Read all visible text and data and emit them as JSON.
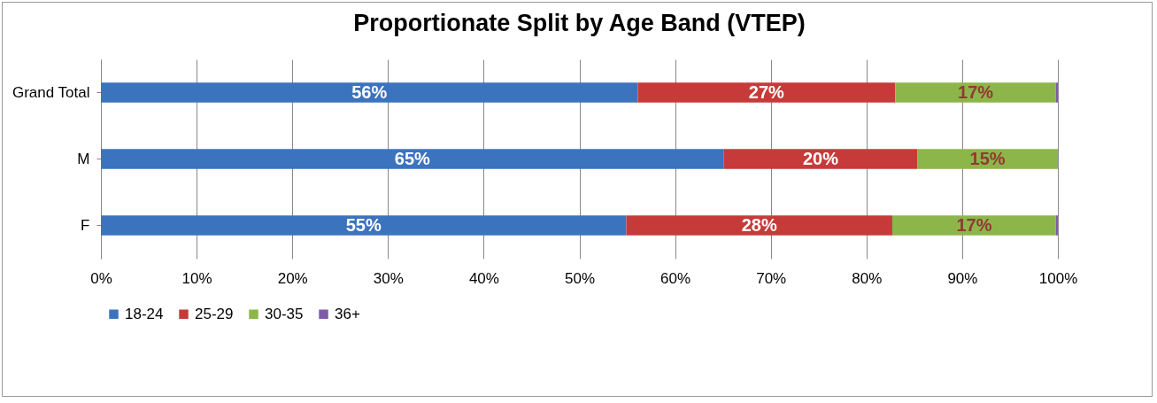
{
  "chart_data": {
    "type": "bar",
    "orientation": "horizontal",
    "stacked": true,
    "title": "Proportionate Split by Age Band (VTEP)",
    "categories": [
      "Grand Total",
      "M",
      "F"
    ],
    "series": [
      {
        "name": "18-24",
        "color": "#3c73be",
        "values": [
          56.1,
          65.1,
          54.9
        ],
        "value_labels": [
          "56%",
          "65%",
          "55%"
        ]
      },
      {
        "name": "25-29",
        "color": "#c63b3a",
        "values": [
          26.9,
          20.2,
          27.8
        ],
        "value_labels": [
          "27%",
          "20%",
          "28%"
        ]
      },
      {
        "name": "30-35",
        "color": "#8cb64a",
        "values": [
          16.8,
          14.7,
          17.1
        ],
        "value_labels": [
          "17%",
          "15%",
          "17%"
        ]
      },
      {
        "name": "36+",
        "color": "#7e5ca8",
        "values": [
          0.2,
          0,
          0.2
        ],
        "value_labels": [
          null,
          null,
          null
        ]
      }
    ],
    "xlim": [
      0,
      100
    ],
    "xticks": [
      {
        "value": 0,
        "label": "0%"
      },
      {
        "value": 10,
        "label": "10%"
      },
      {
        "value": 20,
        "label": "20%"
      },
      {
        "value": 30,
        "label": "30%"
      },
      {
        "value": 40,
        "label": "40%"
      },
      {
        "value": 50,
        "label": "50%"
      },
      {
        "value": 60,
        "label": "60%"
      },
      {
        "value": 70,
        "label": "70%"
      },
      {
        "value": 80,
        "label": "80%"
      },
      {
        "value": 90,
        "label": "90%"
      },
      {
        "value": 100,
        "label": "100%"
      }
    ],
    "grid": "x",
    "legend": "bottom"
  }
}
